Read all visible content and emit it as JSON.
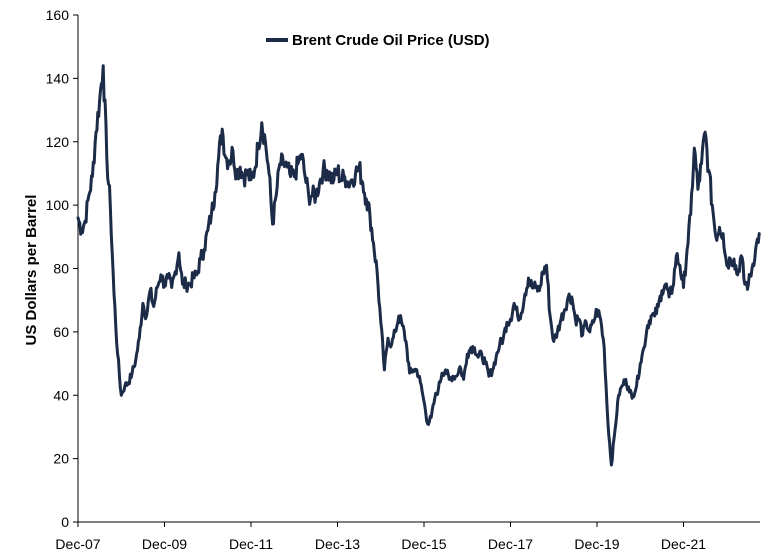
{
  "chart_data": {
    "type": "line",
    "title": "",
    "xlabel": "",
    "ylabel": "US Dollars per Barrel",
    "ylim": [
      0,
      160
    ],
    "yticks": [
      0,
      20,
      40,
      60,
      80,
      100,
      120,
      140,
      160
    ],
    "xticks": [
      "Dec-07",
      "Dec-09",
      "Dec-11",
      "Dec-13",
      "Dec-15",
      "Dec-17",
      "Dec-19",
      "Dec-21"
    ],
    "xlim": [
      "2007-12",
      "2023-09"
    ],
    "grid": false,
    "legend_position": "top-center",
    "line_color": "#1c2b47",
    "series": [
      {
        "name": "Brent Crude Oil Price (USD)",
        "points": [
          [
            "2007-12",
            96
          ],
          [
            "2008-01",
            92
          ],
          [
            "2008-02",
            95
          ],
          [
            "2008-03",
            103
          ],
          [
            "2008-04",
            109
          ],
          [
            "2008-05",
            123
          ],
          [
            "2008-06",
            133
          ],
          [
            "2008-07",
            144
          ],
          [
            "2008-08",
            115
          ],
          [
            "2008-09",
            99
          ],
          [
            "2008-10",
            72
          ],
          [
            "2008-11",
            53
          ],
          [
            "2008-12",
            40
          ],
          [
            "2009-01",
            43
          ],
          [
            "2009-02",
            44
          ],
          [
            "2009-03",
            47
          ],
          [
            "2009-04",
            51
          ],
          [
            "2009-05",
            58
          ],
          [
            "2009-06",
            69
          ],
          [
            "2009-07",
            65
          ],
          [
            "2009-08",
            73
          ],
          [
            "2009-09",
            68
          ],
          [
            "2009-10",
            74
          ],
          [
            "2009-11",
            78
          ],
          [
            "2009-12",
            75
          ],
          [
            "2010-01",
            77
          ],
          [
            "2010-02",
            74
          ],
          [
            "2010-03",
            79
          ],
          [
            "2010-04",
            85
          ],
          [
            "2010-05",
            75
          ],
          [
            "2010-06",
            75
          ],
          [
            "2010-07",
            75
          ],
          [
            "2010-08",
            77
          ],
          [
            "2010-09",
            78
          ],
          [
            "2010-10",
            83
          ],
          [
            "2010-11",
            86
          ],
          [
            "2010-12",
            92
          ],
          [
            "2011-01",
            97
          ],
          [
            "2011-02",
            104
          ],
          [
            "2011-03",
            115
          ],
          [
            "2011-04",
            124
          ],
          [
            "2011-05",
            115
          ],
          [
            "2011-06",
            114
          ],
          [
            "2011-07",
            117
          ],
          [
            "2011-08",
            110
          ],
          [
            "2011-09",
            112
          ],
          [
            "2011-10",
            109
          ],
          [
            "2011-11",
            110
          ],
          [
            "2011-12",
            108
          ],
          [
            "2012-01",
            111
          ],
          [
            "2012-02",
            119
          ],
          [
            "2012-03",
            126
          ],
          [
            "2012-04",
            120
          ],
          [
            "2012-05",
            110
          ],
          [
            "2012-06",
            94
          ],
          [
            "2012-07",
            103
          ],
          [
            "2012-08",
            113
          ],
          [
            "2012-09",
            113
          ],
          [
            "2012-10",
            112
          ],
          [
            "2012-11",
            109
          ],
          [
            "2012-12",
            109
          ],
          [
            "2013-01",
            113
          ],
          [
            "2013-02",
            116
          ],
          [
            "2013-03",
            109
          ],
          [
            "2013-04",
            103
          ],
          [
            "2013-05",
            103
          ],
          [
            "2013-06",
            103
          ],
          [
            "2013-07",
            107
          ],
          [
            "2013-08",
            111
          ],
          [
            "2013-09",
            111
          ],
          [
            "2013-10",
            109
          ],
          [
            "2013-11",
            108
          ],
          [
            "2013-12",
            111
          ],
          [
            "2014-01",
            108
          ],
          [
            "2014-02",
            109
          ],
          [
            "2014-03",
            107
          ],
          [
            "2014-04",
            108
          ],
          [
            "2014-05",
            110
          ],
          [
            "2014-06",
            112
          ],
          [
            "2014-07",
            107
          ],
          [
            "2014-08",
            102
          ],
          [
            "2014-09",
            97
          ],
          [
            "2014-10",
            88
          ],
          [
            "2014-11",
            79
          ],
          [
            "2014-12",
            63
          ],
          [
            "2015-01",
            48
          ],
          [
            "2015-02",
            58
          ],
          [
            "2015-03",
            56
          ],
          [
            "2015-04",
            60
          ],
          [
            "2015-05",
            65
          ],
          [
            "2015-06",
            62
          ],
          [
            "2015-07",
            57
          ],
          [
            "2015-08",
            47
          ],
          [
            "2015-09",
            48
          ],
          [
            "2015-10",
            48
          ],
          [
            "2015-11",
            44
          ],
          [
            "2015-12",
            38
          ],
          [
            "2016-01",
            31
          ],
          [
            "2016-02",
            33
          ],
          [
            "2016-03",
            39
          ],
          [
            "2016-04",
            42
          ],
          [
            "2016-05",
            47
          ],
          [
            "2016-06",
            48
          ],
          [
            "2016-07",
            45
          ],
          [
            "2016-08",
            46
          ],
          [
            "2016-09",
            46
          ],
          [
            "2016-10",
            49
          ],
          [
            "2016-11",
            45
          ],
          [
            "2016-12",
            53
          ],
          [
            "2017-01",
            55
          ],
          [
            "2017-02",
            55
          ],
          [
            "2017-03",
            52
          ],
          [
            "2017-04",
            53
          ],
          [
            "2017-05",
            50
          ],
          [
            "2017-06",
            46
          ],
          [
            "2017-07",
            48
          ],
          [
            "2017-08",
            52
          ],
          [
            "2017-09",
            56
          ],
          [
            "2017-10",
            58
          ],
          [
            "2017-11",
            63
          ],
          [
            "2017-12",
            64
          ],
          [
            "2018-01",
            69
          ],
          [
            "2018-02",
            65
          ],
          [
            "2018-03",
            66
          ],
          [
            "2018-04",
            72
          ],
          [
            "2018-05",
            77
          ],
          [
            "2018-06",
            74
          ],
          [
            "2018-07",
            74
          ],
          [
            "2018-08",
            73
          ],
          [
            "2018-09",
            79
          ],
          [
            "2018-10",
            81
          ],
          [
            "2018-11",
            65
          ],
          [
            "2018-12",
            57
          ],
          [
            "2019-01",
            60
          ],
          [
            "2019-02",
            64
          ],
          [
            "2019-03",
            67
          ],
          [
            "2019-04",
            71
          ],
          [
            "2019-05",
            71
          ],
          [
            "2019-06",
            64
          ],
          [
            "2019-07",
            64
          ],
          [
            "2019-08",
            59
          ],
          [
            "2019-09",
            63
          ],
          [
            "2019-10",
            60
          ],
          [
            "2019-11",
            63
          ],
          [
            "2019-12",
            67
          ],
          [
            "2020-01",
            64
          ],
          [
            "2020-02",
            55
          ],
          [
            "2020-03",
            32
          ],
          [
            "2020-04",
            18
          ],
          [
            "2020-05",
            29
          ],
          [
            "2020-06",
            40
          ],
          [
            "2020-07",
            43
          ],
          [
            "2020-08",
            45
          ],
          [
            "2020-09",
            41
          ],
          [
            "2020-10",
            40
          ],
          [
            "2020-11",
            43
          ],
          [
            "2020-12",
            50
          ],
          [
            "2021-01",
            55
          ],
          [
            "2021-02",
            62
          ],
          [
            "2021-03",
            65
          ],
          [
            "2021-04",
            65
          ],
          [
            "2021-05",
            68
          ],
          [
            "2021-06",
            73
          ],
          [
            "2021-07",
            75
          ],
          [
            "2021-08",
            71
          ],
          [
            "2021-09",
            74
          ],
          [
            "2021-10",
            84
          ],
          [
            "2021-11",
            81
          ],
          [
            "2021-12",
            74
          ],
          [
            "2022-01",
            86
          ],
          [
            "2022-02",
            97
          ],
          [
            "2022-03",
            118
          ],
          [
            "2022-04",
            105
          ],
          [
            "2022-05",
            113
          ],
          [
            "2022-06",
            123
          ],
          [
            "2022-07",
            111
          ],
          [
            "2022-08",
            100
          ],
          [
            "2022-09",
            90
          ],
          [
            "2022-10",
            93
          ],
          [
            "2022-11",
            91
          ],
          [
            "2022-12",
            81
          ],
          [
            "2023-01",
            83
          ],
          [
            "2023-02",
            83
          ],
          [
            "2023-03",
            78
          ],
          [
            "2023-04",
            84
          ],
          [
            "2023-05",
            75
          ],
          [
            "2023-06",
            75
          ],
          [
            "2023-07",
            80
          ],
          [
            "2023-08",
            86
          ],
          [
            "2023-09",
            91
          ]
        ]
      }
    ]
  }
}
